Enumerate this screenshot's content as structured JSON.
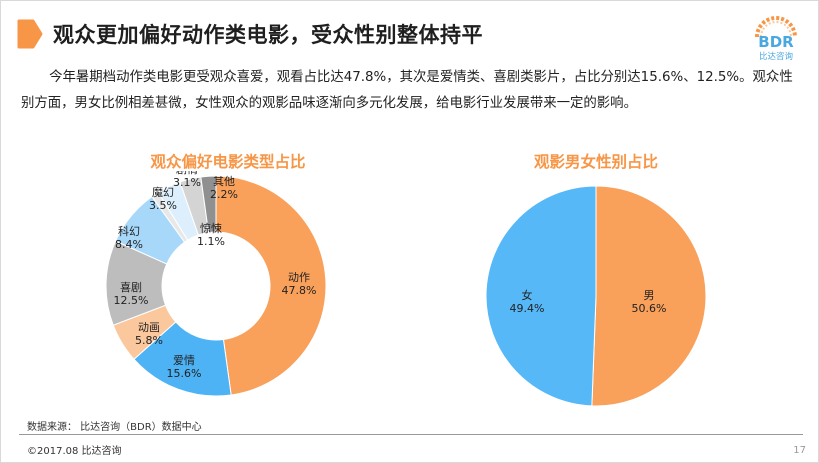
{
  "header": {
    "title": "观众更加偏好动作类电影，受众性别整体持平",
    "accent_color": "#f79646"
  },
  "logo": {
    "mark": "BDR",
    "caption": "比达咨询",
    "color": "#4aa8e0"
  },
  "body": {
    "paragraph": "今年暑期档动作类电影更受观众喜爱，观看占比达47.8%，其次是爱情类、喜剧类影片，占比分别达15.6%、12.5%。观众性别方面，男女比例相差甚微，女性观众的观影品味逐渐向多元化发展，给电影行业发展带来一定的影响。"
  },
  "chart_data": [
    {
      "type": "donut",
      "title": "观众偏好电影类型占比",
      "slices": [
        {
          "label": "动作",
          "value": 47.8,
          "display": "47.8%",
          "color": "#f9a05a"
        },
        {
          "label": "爱情",
          "value": 15.6,
          "display": "15.6%",
          "color": "#4db3f5"
        },
        {
          "label": "动画",
          "value": 5.8,
          "display": "5.8%",
          "color": "#fbc79d"
        },
        {
          "label": "喜剧",
          "value": 12.5,
          "display": "12.5%",
          "color": "#bdbdbd"
        },
        {
          "label": "科幻",
          "value": 8.4,
          "display": "8.4%",
          "color": "#a7d8fa"
        },
        {
          "label": "惊悚",
          "value": 1.1,
          "display": "1.1%",
          "color": "#e8e8e8"
        },
        {
          "label": "魔幻",
          "value": 3.5,
          "display": "3.5%",
          "color": "#ddeffc"
        },
        {
          "label": "剧情",
          "value": 3.1,
          "display": "3.1%",
          "color": "#d4d4d4"
        },
        {
          "label": "其他",
          "value": 2.2,
          "display": "2.2%",
          "color": "#909090"
        }
      ]
    },
    {
      "type": "pie",
      "title": "观影男女性别占比",
      "slices": [
        {
          "label": "男",
          "value": 50.6,
          "display": "50.6%",
          "color": "#f9a05a"
        },
        {
          "label": "女",
          "value": 49.4,
          "display": "49.4%",
          "color": "#56b8f7"
        }
      ]
    }
  ],
  "footer": {
    "source": "数据来源： 比达咨询（BDR）数据中心",
    "copyright": "©2017.08 比达咨询",
    "page_number": "17"
  }
}
